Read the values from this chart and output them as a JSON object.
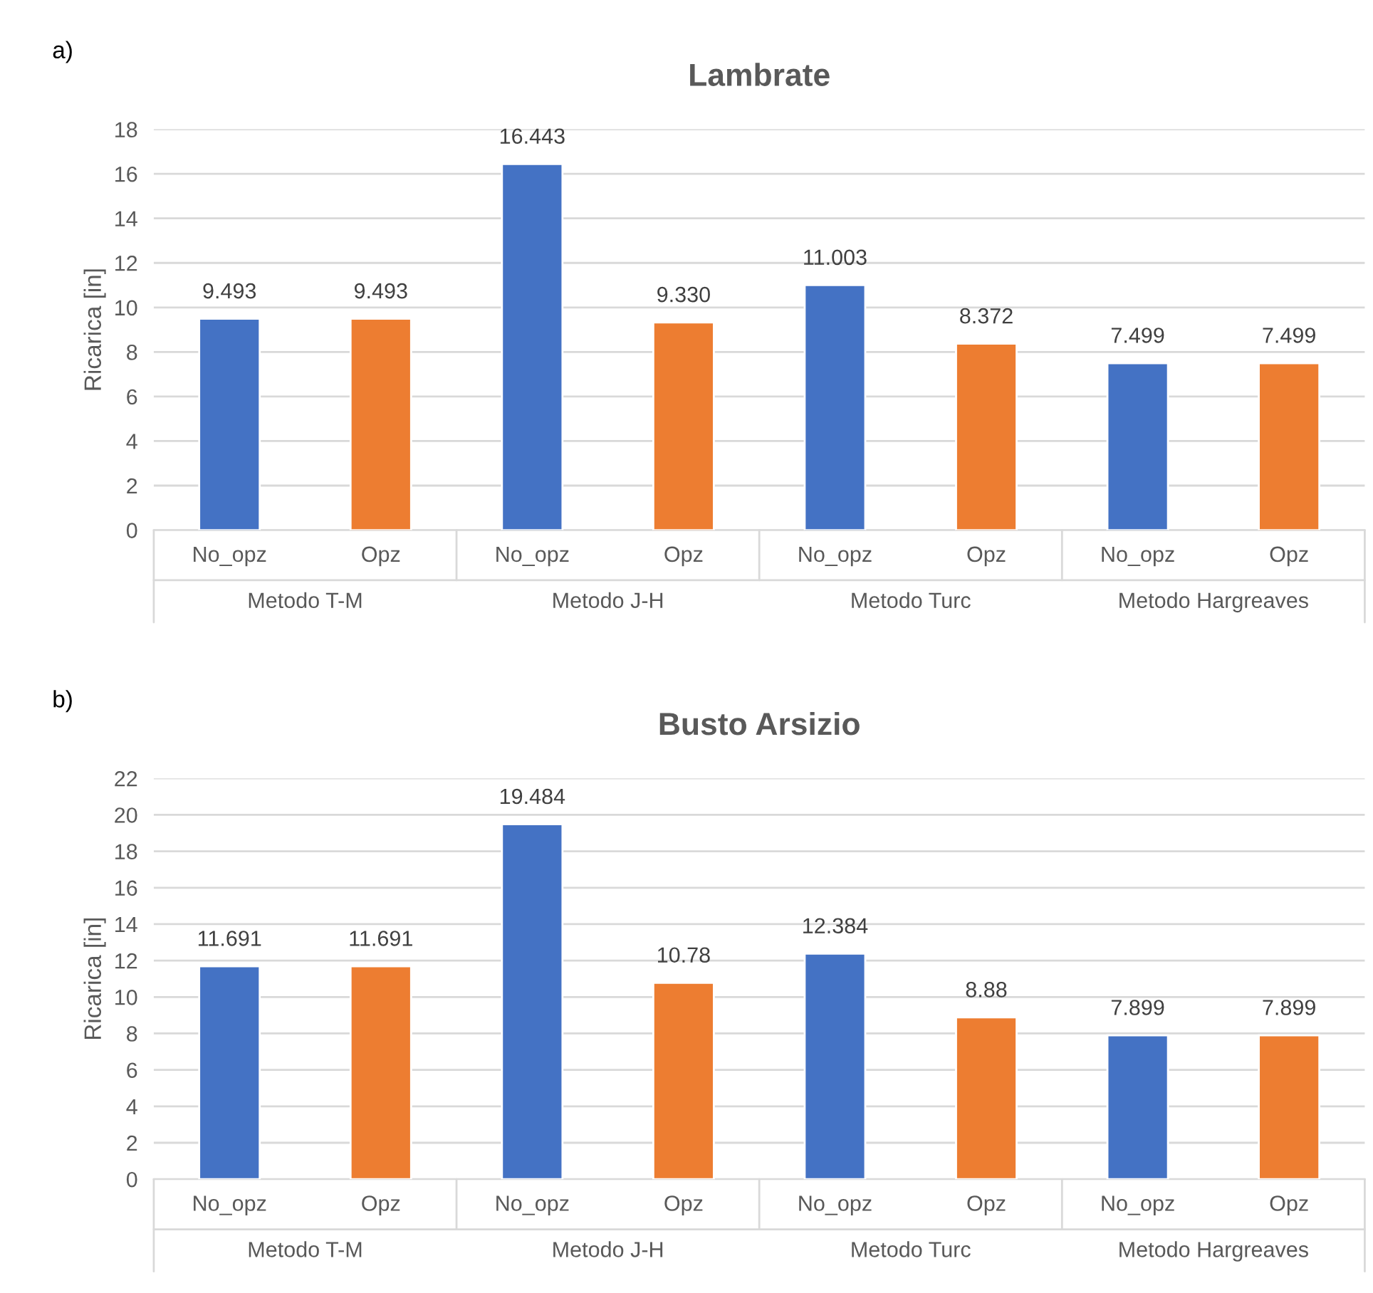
{
  "chart_data": [
    {
      "type": "bar",
      "title": "Lambrate",
      "ylabel": "Ricarica [in]",
      "categories": [
        "No_opz",
        "Opz",
        "No_opz",
        "Opz",
        "No_opz",
        "Opz",
        "No_opz",
        "Opz"
      ],
      "values": [
        9.493,
        9.493,
        16.443,
        9.33,
        11.003,
        8.372,
        7.499,
        7.499
      ],
      "value_labels": [
        "9.493",
        "9.493",
        "16.443",
        "9.330",
        "11.003",
        "8.372",
        "7.499",
        "7.499"
      ],
      "colors": [
        "#4472c4",
        "#ed7d31",
        "#4472c4",
        "#ed7d31",
        "#4472c4",
        "#ed7d31",
        "#4472c4",
        "#ed7d31"
      ],
      "ylim": [
        0,
        18
      ],
      "yticks": [
        0,
        2,
        4,
        6,
        8,
        10,
        12,
        14,
        16,
        18
      ],
      "grid": "y",
      "annotations": [
        "a)",
        "Metodo T-M",
        "Metodo J-H",
        "Metodo Turc",
        "Metodo Hargreaves"
      ]
    },
    {
      "type": "bar",
      "title": "Busto Arsizio",
      "ylabel": "Ricarica [in]",
      "categories": [
        "No_opz",
        "Opz",
        "No_opz",
        "Opz",
        "No_opz",
        "Opz",
        "No_opz",
        "Opz"
      ],
      "values": [
        11.691,
        11.691,
        19.484,
        10.78,
        12.384,
        8.88,
        7.899,
        7.899
      ],
      "value_labels": [
        "11.691",
        "11.691",
        "19.484",
        "10.78",
        "12.384",
        "8.88",
        "7.899",
        "7.899"
      ],
      "colors": [
        "#4472c4",
        "#ed7d31",
        "#4472c4",
        "#ed7d31",
        "#4472c4",
        "#ed7d31",
        "#4472c4",
        "#ed7d31"
      ],
      "ylim": [
        0,
        22
      ],
      "yticks": [
        0,
        2,
        4,
        6,
        8,
        10,
        12,
        14,
        16,
        18,
        20,
        22
      ],
      "grid": "y",
      "annotations": [
        "b)",
        "Metodo T-M",
        "Metodo J-H",
        "Metodo Turc",
        "Metodo Hargreaves"
      ]
    }
  ]
}
